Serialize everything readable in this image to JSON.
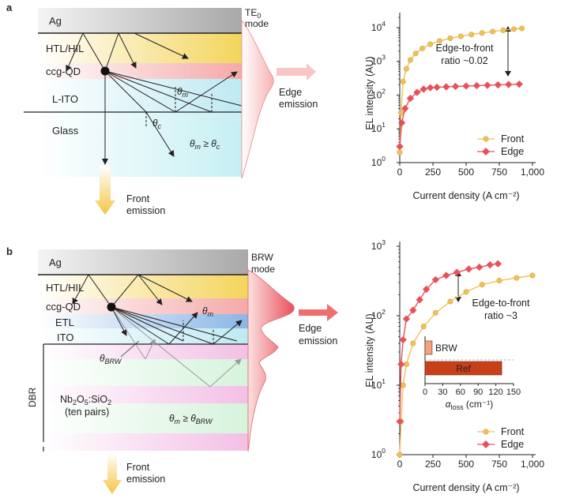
{
  "panel_a": {
    "label": "a",
    "layers": [
      "Ag",
      "HTL/HIL",
      "ccg-QD",
      "L-ITO",
      "Glass"
    ],
    "mode_sym": "TE",
    "mode_sub": "0",
    "mode_word": "mode",
    "theta_m_sym": "θ",
    "theta_m_sub": "m",
    "theta_c_sym": "θ",
    "theta_c_sub": "c",
    "cond_lhs": "θ",
    "cond_lhs_sub": "m",
    "cond_op": " ≥ ",
    "cond_rhs": "θ",
    "cond_rhs_sub": "c",
    "edge_1": "Edge",
    "edge_2": "emission",
    "front_1": "Front",
    "front_2": "emission"
  },
  "panel_b": {
    "label": "b",
    "layers": [
      "Ag",
      "HTL/HIL",
      "ccg-QD",
      "ETL",
      "ITO"
    ],
    "mode_1": "BRW",
    "mode_2": "mode",
    "theta_m_sym": "θ",
    "theta_m_sub": "m",
    "theta_brw_sym": "θ",
    "theta_brw_sub": "BRW",
    "dbr": "DBR",
    "stack_1a": "Nb",
    "stack_1b": "2",
    "stack_1c": "O",
    "stack_1d": "5",
    "stack_1e": ":SiO",
    "stack_1f": "2",
    "stack_2": "(ten pairs)",
    "cond_lhs": "θ",
    "cond_lhs_sub": "m",
    "cond_op": " ≥ ",
    "cond_rhs": "θ",
    "cond_rhs_sub": "BRW",
    "edge_1": "Edge",
    "edge_2": "emission",
    "front_1": "Front",
    "front_2": "emission"
  },
  "colors": {
    "front": "#f0c05a",
    "edge": "#e8505b",
    "ref": "#c8401a",
    "brw": "#f2a27e"
  },
  "chart_data": [
    {
      "type": "line",
      "panel": "a",
      "xlabel": "Current density (A cm⁻²)",
      "ylabel": "EL intensity (AU)",
      "yscale": "log",
      "xlim": [
        0,
        1000
      ],
      "ylim": [
        1,
        20000
      ],
      "x_ticks": [
        "0",
        "250",
        "500",
        "750",
        "1,000"
      ],
      "y_ticks": [
        {
          "b": "10",
          "e": "0"
        },
        {
          "b": "10",
          "e": "1"
        },
        {
          "b": "10",
          "e": "2"
        },
        {
          "b": "10",
          "e": "3"
        },
        {
          "b": "10",
          "e": "4"
        }
      ],
      "annotation": [
        "Edge-to-front",
        "ratio ~0.02"
      ],
      "legend_position": "bottom-right",
      "series": [
        {
          "name": "Front",
          "color": "#f0c05a",
          "x": [
            0,
            10,
            25,
            50,
            80,
            120,
            170,
            230,
            300,
            380,
            460,
            540,
            620,
            700,
            780,
            860,
            920
          ],
          "y": [
            2,
            30,
            250,
            600,
            1100,
            1700,
            2400,
            3200,
            4000,
            4800,
            5500,
            6200,
            6900,
            7600,
            8300,
            9000,
            9400
          ]
        },
        {
          "name": "Edge",
          "color": "#e8505b",
          "x": [
            0,
            15,
            40,
            80,
            130,
            180,
            230,
            280,
            350,
            420,
            500,
            580,
            660,
            740,
            820,
            900
          ],
          "y": [
            3,
            15,
            40,
            80,
            120,
            150,
            165,
            170,
            175,
            180,
            185,
            190,
            195,
            200,
            205,
            210
          ]
        }
      ]
    },
    {
      "type": "line",
      "panel": "b",
      "xlabel": "Current density (A cm⁻²)",
      "ylabel": "EL intensity (AU)",
      "yscale": "log",
      "xlim": [
        0,
        1000
      ],
      "ylim": [
        1,
        1000
      ],
      "x_ticks": [
        "0",
        "250",
        "500",
        "750",
        "1,000"
      ],
      "y_ticks": [
        {
          "b": "10",
          "e": "0"
        },
        {
          "b": "10",
          "e": "1"
        },
        {
          "b": "10",
          "e": "2"
        },
        {
          "b": "10",
          "e": "3"
        }
      ],
      "annotation": [
        "Edge-to-front",
        "ratio ~3"
      ],
      "legend_position": "bottom-right",
      "series": [
        {
          "name": "Front",
          "color": "#f0c05a",
          "x": [
            0,
            10,
            25,
            50,
            100,
            180,
            270,
            380,
            500,
            620,
            750,
            880,
            1000
          ],
          "y": [
            1,
            3,
            10,
            20,
            40,
            70,
            110,
            160,
            220,
            280,
            320,
            350,
            380
          ]
        },
        {
          "name": "Edge",
          "color": "#e8505b",
          "x": [
            0,
            10,
            25,
            50,
            100,
            150,
            200,
            270,
            350,
            430,
            520,
            600,
            680,
            740
          ],
          "y": [
            3,
            20,
            45,
            90,
            120,
            170,
            240,
            330,
            380,
            420,
            470,
            500,
            540,
            560
          ]
        }
      ],
      "inset": {
        "type": "bar",
        "orientation": "horizontal",
        "categories": [
          "BRW",
          "Ref"
        ],
        "values": [
          12,
          130
        ],
        "xlim": [
          0,
          150
        ],
        "x_ticks": [
          "0",
          "30",
          "60",
          "90",
          "120",
          "150"
        ],
        "xlabel_sym": "α",
        "xlabel_sub": "loss",
        "xlabel_unit": " (cm⁻¹)"
      }
    }
  ]
}
